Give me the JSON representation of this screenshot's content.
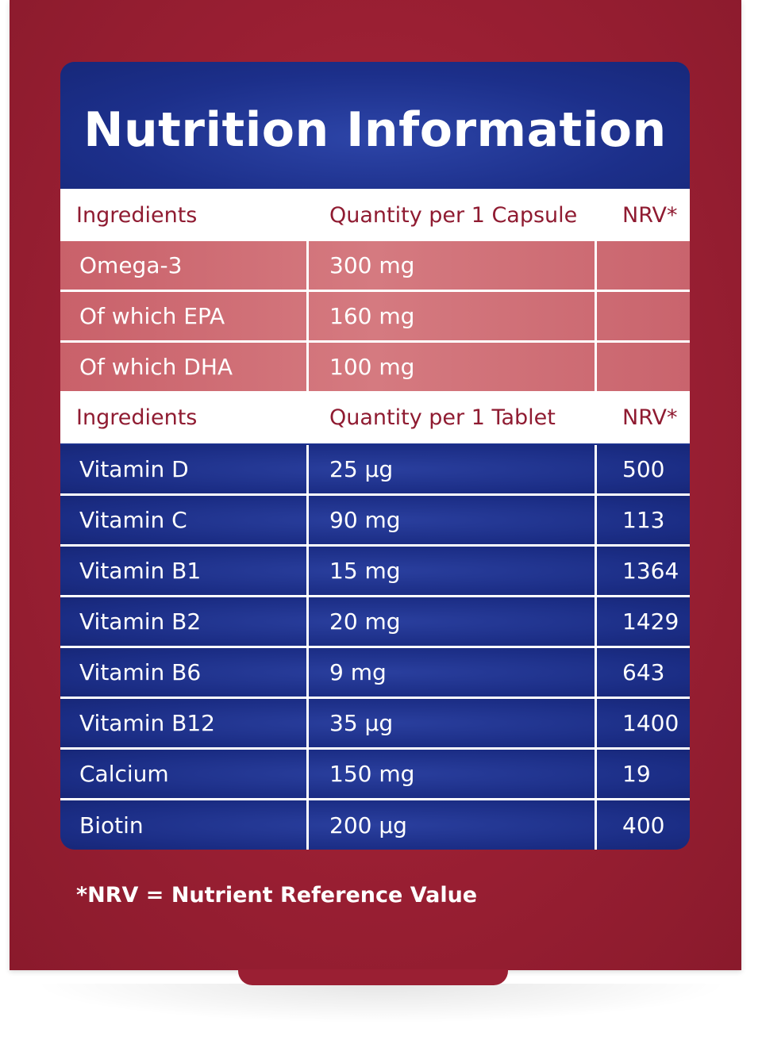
{
  "title": "Nutrition Information",
  "capsule_table": {
    "headers": [
      "Ingredients",
      "Quantity per 1 Capsule",
      "NRV*"
    ],
    "rows": [
      {
        "ingredient": "Omega-3",
        "quantity": "300 mg",
        "nrv": ""
      },
      {
        "ingredient": "Of which EPA",
        "quantity": "160 mg",
        "nrv": ""
      },
      {
        "ingredient": "Of which DHA",
        "quantity": "100 mg",
        "nrv": ""
      }
    ]
  },
  "tablet_table": {
    "headers": [
      "Ingredients",
      "Quantity per 1 Tablet",
      "NRV*"
    ],
    "rows": [
      {
        "ingredient": "Vitamin D",
        "quantity": "25 µg",
        "nrv": "500"
      },
      {
        "ingredient": "Vitamin C",
        "quantity": "90 mg",
        "nrv": "113"
      },
      {
        "ingredient": "Vitamin B1",
        "quantity": "15 mg",
        "nrv": "1364"
      },
      {
        "ingredient": "Vitamin B2",
        "quantity": "20 mg",
        "nrv": "1429"
      },
      {
        "ingredient": "Vitamin B6",
        "quantity": "9 mg",
        "nrv": "643"
      },
      {
        "ingredient": "Vitamin B12",
        "quantity": "35 µg",
        "nrv": "1400"
      },
      {
        "ingredient": "Calcium",
        "quantity": "150 mg",
        "nrv": "19"
      },
      {
        "ingredient": "Biotin",
        "quantity": "200 µg",
        "nrv": "400"
      }
    ]
  },
  "footnote": "*NRV = Nutrient Reference Value",
  "colors": {
    "background_red": "#9a1f33",
    "panel_blue": "#1c2f8a",
    "header_text_red": "#8f1b31",
    "pink_row": "#d07077"
  }
}
